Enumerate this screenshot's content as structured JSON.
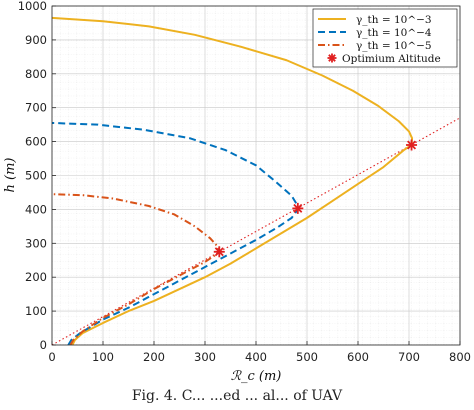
{
  "chart_data": {
    "type": "line",
    "xlabel": "ℛ_c (m)",
    "ylabel": "h (m)",
    "xlim": [
      0,
      800
    ],
    "ylim": [
      0,
      1000
    ],
    "xticks": [
      "0",
      "100",
      "200",
      "300",
      "400",
      "500",
      "600",
      "700",
      "800"
    ],
    "yticks": [
      "0",
      "100",
      "200",
      "300",
      "400",
      "500",
      "600",
      "700",
      "800",
      "900",
      "1000"
    ],
    "grid": "minor dotted",
    "legend_position": "top-right",
    "series": [
      {
        "name": "γ_th = 10^−3",
        "color": "#EDB120",
        "style": "solid",
        "points": [
          [
            40,
            0
          ],
          [
            45,
            15
          ],
          [
            60,
            35
          ],
          [
            100,
            65
          ],
          [
            150,
            100
          ],
          [
            200,
            130
          ],
          [
            250,
            165
          ],
          [
            300,
            200
          ],
          [
            350,
            240
          ],
          [
            400,
            285
          ],
          [
            450,
            330
          ],
          [
            500,
            375
          ],
          [
            550,
            425
          ],
          [
            600,
            475
          ],
          [
            650,
            525
          ],
          [
            690,
            575
          ],
          [
            705,
            590
          ],
          [
            706,
            610
          ],
          [
            700,
            630
          ],
          [
            680,
            660
          ],
          [
            640,
            705
          ],
          [
            590,
            750
          ],
          [
            530,
            795
          ],
          [
            460,
            840
          ],
          [
            370,
            880
          ],
          [
            280,
            915
          ],
          [
            190,
            940
          ],
          [
            100,
            955
          ],
          [
            0,
            965
          ]
        ]
      },
      {
        "name": "γ_th = 10^−4",
        "color": "#0072BD",
        "style": "dashed",
        "points": [
          [
            32,
            0
          ],
          [
            38,
            15
          ],
          [
            55,
            35
          ],
          [
            100,
            75
          ],
          [
            150,
            110
          ],
          [
            200,
            150
          ],
          [
            250,
            190
          ],
          [
            300,
            230
          ],
          [
            350,
            270
          ],
          [
            400,
            310
          ],
          [
            440,
            345
          ],
          [
            470,
            375
          ],
          [
            482,
            400
          ],
          [
            480,
            415
          ],
          [
            470,
            440
          ],
          [
            440,
            480
          ],
          [
            400,
            530
          ],
          [
            340,
            575
          ],
          [
            270,
            610
          ],
          [
            180,
            635
          ],
          [
            90,
            650
          ],
          [
            0,
            655
          ]
        ]
      },
      {
        "name": "γ_th = 10^−5",
        "color": "#D95319",
        "style": "dashdot",
        "points": [
          [
            36,
            0
          ],
          [
            42,
            15
          ],
          [
            60,
            40
          ],
          [
            100,
            80
          ],
          [
            150,
            120
          ],
          [
            200,
            165
          ],
          [
            250,
            205
          ],
          [
            300,
            245
          ],
          [
            320,
            265
          ],
          [
            328,
            275
          ],
          [
            325,
            290
          ],
          [
            310,
            315
          ],
          [
            280,
            350
          ],
          [
            240,
            385
          ],
          [
            190,
            410
          ],
          [
            120,
            432
          ],
          [
            60,
            442
          ],
          [
            0,
            445
          ]
        ]
      }
    ],
    "reference_line": {
      "color": "#E02020",
      "style": "dotted",
      "points": [
        [
          0,
          0
        ],
        [
          800,
          670
        ]
      ]
    },
    "markers": {
      "name": "Optimium Altitude",
      "color": "#E02020",
      "points": [
        [
          328,
          275
        ],
        [
          482,
          403
        ],
        [
          705,
          590
        ]
      ]
    },
    "caption": "Fig. 4. C... ...ed ... al... of UAV"
  }
}
